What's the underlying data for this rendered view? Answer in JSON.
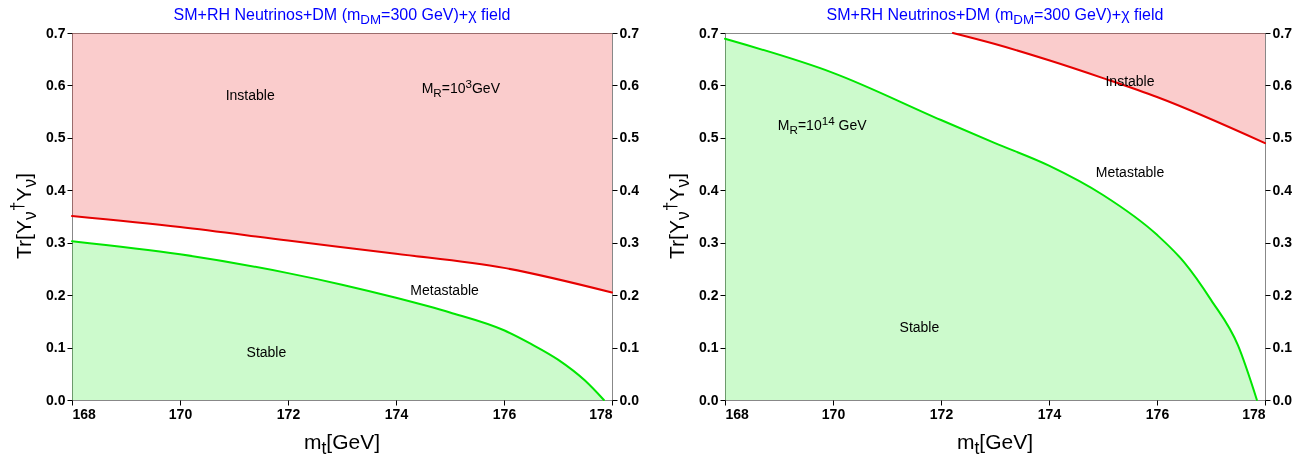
{
  "chart_data": [
    {
      "type": "area",
      "title": "SM+RH Neutrinos+DM (m$_{DM}$=300 GeV)+χ field",
      "xlabel": "m$_{t}$[GeV]",
      "ylabel": "Tr[Y$_{ν}$$^{†}$Y$_{ν}$]",
      "xlim": [
        168,
        178
      ],
      "xticks": [
        168,
        170,
        172,
        174,
        176,
        178
      ],
      "ylim": [
        0,
        0.7
      ],
      "yticks": [
        {
          "value": 0,
          "label": "0.0"
        },
        0.1,
        0.2,
        0.3,
        0.4,
        0.5,
        0.6,
        0.7
      ],
      "y2lim": [
        0,
        0.7
      ],
      "y2ticks": [
        {
          "value": 0,
          "label": "0.0"
        },
        0.1,
        0.2,
        0.3,
        0.4,
        0.5,
        0.6,
        0.7
      ],
      "series": [
        {
          "type": "area",
          "color": "#00e600",
          "x": [
            168,
            170,
            172,
            173,
            174,
            175,
            176,
            176.5,
            177,
            177.5,
            177.85
          ],
          "values": [
            0.303,
            0.278,
            0.242,
            0.22,
            0.195,
            0.167,
            0.133,
            0.107,
            0.077,
            0.037,
            0
          ]
        },
        {
          "type": "line",
          "color": "#e60000",
          "x": [
            168,
            170,
            172,
            174,
            176,
            178
          ],
          "values": [
            0.351,
            0.33,
            0.304,
            0.279,
            0.252,
            0.205
          ],
          "lower": [
            0.351,
            0.33,
            0.304,
            0.279,
            0.252,
            0.205
          ],
          "upper": [
            0.7,
            0.7,
            0.7,
            0.7,
            0.7,
            0.7
          ]
        }
      ],
      "annotations": [
        "Instable",
        "M$_{R}$=10$^{3}$GeV",
        "Metastable",
        "Stable"
      ]
    },
    {
      "type": "area",
      "title": "SM+RH Neutrinos+DM (m$_{DM}$=300 GeV)+χ field",
      "xlabel": "m$_{t}$[GeV]",
      "ylabel": "Tr[Y$_{ν}$$^{†}$Y$_{ν}$]",
      "xlim": [
        168,
        178
      ],
      "xticks": [
        168,
        170,
        172,
        174,
        176,
        178
      ],
      "ylim": [
        0,
        0.7
      ],
      "yticks": [
        {
          "value": 0,
          "label": "0.0"
        },
        0.1,
        0.2,
        0.3,
        0.4,
        0.5,
        0.6,
        0.7
      ],
      "y2lim": [
        0,
        0.7
      ],
      "y2ticks": [
        {
          "value": 0,
          "label": "0.0"
        },
        0.1,
        0.2,
        0.3,
        0.4,
        0.5,
        0.6,
        0.7
      ],
      "series": [
        {
          "type": "area",
          "color": "#00e600",
          "x": [
            168,
            170,
            172,
            173,
            174,
            175,
            176,
            176.5,
            177,
            177.5,
            177.85
          ],
          "values": [
            0.689,
            0.624,
            0.534,
            0.49,
            0.447,
            0.391,
            0.315,
            0.263,
            0.191,
            0.104,
            0
          ]
        },
        {
          "type": "line",
          "color": "#e60000",
          "x": [
            172.22,
            173,
            174,
            175,
            176,
            178
          ],
          "values": [
            0.7,
            0.679,
            0.648,
            0.614,
            0.578,
            0.49
          ],
          "lower": [
            0.7,
            0.679,
            0.648,
            0.614,
            0.578,
            0.49
          ],
          "upper": [
            0.7,
            0.7,
            0.7,
            0.7,
            0.7,
            0.7
          ]
        }
      ],
      "annotations": [
        "Instable",
        "M$_{R}$=10$^{14}$ GeV",
        "Metastable",
        "Stable"
      ]
    }
  ]
}
